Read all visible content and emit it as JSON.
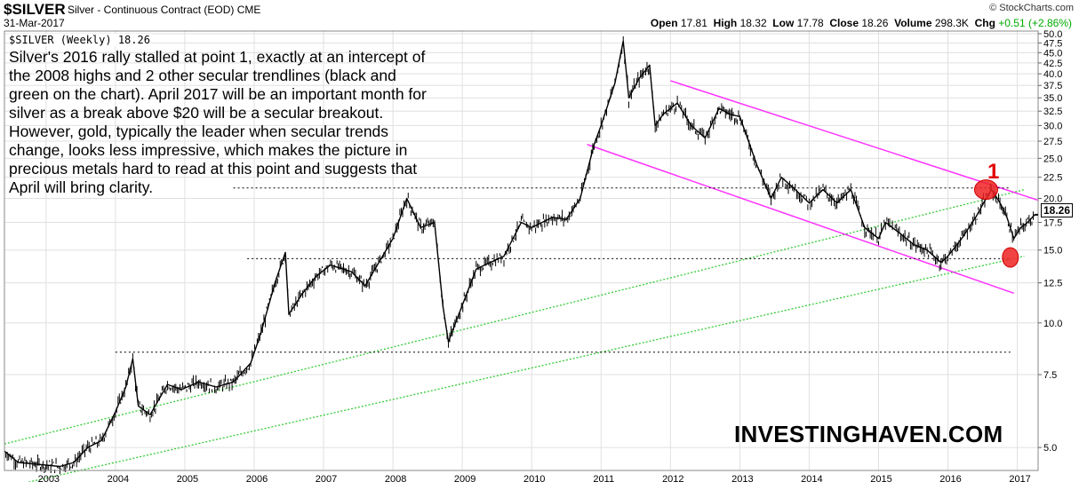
{
  "header": {
    "symbol": "$SILVER",
    "description": "Silver - Continuous Contract (EOD)",
    "exchange": "CME",
    "date": "31-Mar-2017",
    "brand": "© StockCharts.com",
    "ohlc": {
      "open_label": "Open",
      "open": "17.81",
      "high_label": "High",
      "high": "18.32",
      "low_label": "Low",
      "low": "17.78",
      "close_label": "Close",
      "close": "18.26",
      "volume_label": "Volume",
      "volume": "298.3K",
      "chg_label": "Chg",
      "chg": "+0.51 (+2.86%)"
    }
  },
  "panel_title": "$SILVER (Weekly) 18.26",
  "annotation": "Silver's 2016 rally stalled at point 1, exactly at an intercept of the 2008 highs and 2 other secular trendlines (black and green on the chart). April 2017 will be an important month for silver as a break above $20 will be a secular breakout. However, gold, typically the leader when secular trends change, looks less impressive, which makes the picture in precious metals hard to read at this point and suggests that April will bring clarity.",
  "watermark": "INVESTINGHAVEN.COM",
  "point_label": "1",
  "last_price_tag": "18.26",
  "colors": {
    "price": "#000000",
    "trend_green": "#33cc33",
    "channel_magenta": "#ff33ff",
    "dotted_black": "#000000",
    "marker_red": "#ee2222",
    "grid": "#e0e0e0"
  },
  "chart_data": {
    "type": "line",
    "title": "$SILVER (Weekly) 18.26",
    "scale": "log",
    "ylim": [
      4.4,
      51
    ],
    "xlim": [
      2002.4,
      2017.3
    ],
    "grid": true,
    "y_ticks": [
      "5.0",
      "7.5",
      "10.0",
      "12.5",
      "15.0",
      "17.5",
      "20.0",
      "22.5",
      "25.0",
      "27.5",
      "30.0",
      "32.5",
      "35.0",
      "37.5",
      "40.0",
      "42.5",
      "45.0",
      "47.5",
      "50.0"
    ],
    "x_ticks": [
      "2003",
      "2004",
      "2005",
      "2006",
      "2007",
      "2008",
      "2009",
      "2010",
      "2011",
      "2012",
      "2013",
      "2014",
      "2015",
      "2016",
      "2017"
    ],
    "series": [
      {
        "values": [
          [
            2002.4,
            4.9
          ],
          [
            2002.6,
            4.6
          ],
          [
            2002.9,
            4.55
          ],
          [
            2003.2,
            4.5
          ],
          [
            2003.4,
            4.6
          ],
          [
            2003.6,
            5.0
          ],
          [
            2003.8,
            5.2
          ],
          [
            2004.0,
            6.1
          ],
          [
            2004.15,
            7.0
          ],
          [
            2004.25,
            8.2
          ],
          [
            2004.33,
            6.3
          ],
          [
            2004.5,
            6.0
          ],
          [
            2004.75,
            7.1
          ],
          [
            2004.95,
            6.9
          ],
          [
            2005.2,
            7.2
          ],
          [
            2005.45,
            7.0
          ],
          [
            2005.7,
            7.2
          ],
          [
            2005.95,
            8.0
          ],
          [
            2006.1,
            9.5
          ],
          [
            2006.3,
            12.5
          ],
          [
            2006.45,
            14.8
          ],
          [
            2006.5,
            10.5
          ],
          [
            2006.7,
            11.8
          ],
          [
            2006.9,
            13.0
          ],
          [
            2007.1,
            13.8
          ],
          [
            2007.4,
            13.3
          ],
          [
            2007.6,
            12.3
          ],
          [
            2007.85,
            14.5
          ],
          [
            2008.0,
            16.0
          ],
          [
            2008.2,
            20.0
          ],
          [
            2008.4,
            17.0
          ],
          [
            2008.6,
            17.5
          ],
          [
            2008.72,
            11.0
          ],
          [
            2008.8,
            9.0
          ],
          [
            2008.95,
            10.5
          ],
          [
            2009.2,
            13.5
          ],
          [
            2009.4,
            14.0
          ],
          [
            2009.6,
            14.5
          ],
          [
            2009.85,
            17.5
          ],
          [
            2010.0,
            17.0
          ],
          [
            2010.3,
            18.0
          ],
          [
            2010.5,
            17.8
          ],
          [
            2010.7,
            20.0
          ],
          [
            2010.9,
            27.0
          ],
          [
            2011.0,
            30.0
          ],
          [
            2011.2,
            38.0
          ],
          [
            2011.32,
            48.0
          ],
          [
            2011.4,
            35.0
          ],
          [
            2011.55,
            39.0
          ],
          [
            2011.7,
            42.0
          ],
          [
            2011.78,
            30.0
          ],
          [
            2011.9,
            32.0
          ],
          [
            2012.1,
            34.0
          ],
          [
            2012.3,
            30.0
          ],
          [
            2012.5,
            28.0
          ],
          [
            2012.7,
            33.0
          ],
          [
            2012.85,
            32.0
          ],
          [
            2013.0,
            31.5
          ],
          [
            2013.25,
            24.0
          ],
          [
            2013.45,
            20.0
          ],
          [
            2013.6,
            22.5
          ],
          [
            2013.8,
            21.0
          ],
          [
            2014.0,
            19.5
          ],
          [
            2014.2,
            21.0
          ],
          [
            2014.4,
            19.5
          ],
          [
            2014.6,
            21.0
          ],
          [
            2014.8,
            17.0
          ],
          [
            2015.0,
            16.0
          ],
          [
            2015.1,
            17.5
          ],
          [
            2015.3,
            16.5
          ],
          [
            2015.5,
            15.5
          ],
          [
            2015.7,
            15.0
          ],
          [
            2015.9,
            14.0
          ],
          [
            2016.0,
            14.5
          ],
          [
            2016.2,
            16.0
          ],
          [
            2016.4,
            18.0
          ],
          [
            2016.55,
            20.0
          ],
          [
            2016.63,
            21.0
          ],
          [
            2016.75,
            19.5
          ],
          [
            2016.85,
            18.0
          ],
          [
            2016.95,
            16.0
          ],
          [
            2017.05,
            17.0
          ],
          [
            2017.15,
            17.5
          ],
          [
            2017.25,
            18.26
          ]
        ]
      }
    ],
    "trendlines": [
      {
        "style": "green-dotted",
        "points": [
          [
            2002.4,
            5.1
          ],
          [
            2017.1,
            21.0
          ]
        ]
      },
      {
        "style": "green-dotted",
        "points": [
          [
            2002.4,
            4.0
          ],
          [
            2017.1,
            14.5
          ]
        ]
      },
      {
        "style": "magenta",
        "points": [
          [
            2012.0,
            38.5
          ],
          [
            2017.3,
            19.8
          ]
        ]
      },
      {
        "style": "magenta",
        "points": [
          [
            2010.8,
            27.0
          ],
          [
            2016.95,
            11.8
          ]
        ]
      },
      {
        "style": "black-dotted",
        "points": [
          [
            2004.0,
            8.5
          ],
          [
            2016.9,
            8.5
          ]
        ]
      },
      {
        "style": "black-dotted",
        "points": [
          [
            2005.9,
            14.3
          ],
          [
            2016.9,
            14.3
          ]
        ]
      },
      {
        "style": "black-dotted",
        "points": [
          [
            2005.7,
            21.2
          ],
          [
            2016.9,
            21.2
          ]
        ]
      }
    ],
    "markers": [
      {
        "label": "1",
        "x": 2016.55,
        "y": 21.0
      },
      {
        "label": "",
        "x": 2016.9,
        "y": 14.4
      }
    ]
  }
}
